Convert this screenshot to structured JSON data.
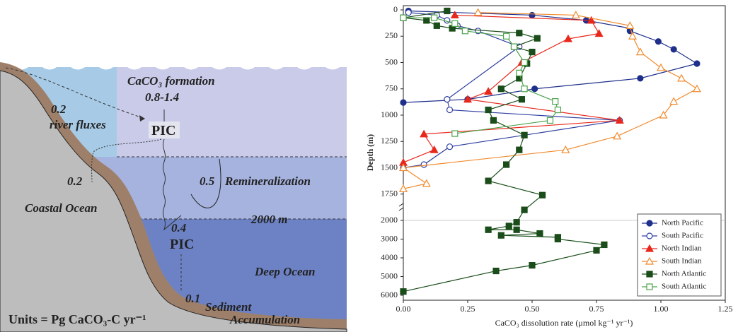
{
  "diagram": {
    "formation_label": "CaCO₃ formation",
    "formation_value": "0.8-1.4",
    "river_value": "0.2",
    "river_label": "river fluxes",
    "pic_upper": "PIC",
    "coastal_value": "0.2",
    "coastal_label": "Coastal Ocean",
    "remin_value": "0.5",
    "remin_label": "Remineralization",
    "depth_label": "2000 m",
    "export_value": "0.4",
    "pic_lower": "PIC",
    "deep_label": "Deep Ocean",
    "sediment_value": "0.1",
    "sediment_label_1": "Sediment",
    "sediment_label_2": "Accumulation",
    "units": "Units = Pg CaCO₃-C yr⁻¹"
  },
  "chart_data": {
    "type": "line",
    "xlabel": "CaCO₃ dissolution rate (μmol kg⁻¹ yr⁻¹)",
    "ylabel": "Depth (m)",
    "xlim": [
      0,
      1.25
    ],
    "xticks": [
      {
        "value": 0,
        "label": "0.00"
      },
      {
        "value": 0.25,
        "label": "0.25"
      },
      {
        "value": 0.5,
        "label": "0.50"
      },
      {
        "value": 0.75,
        "label": "0.75"
      },
      {
        "value": 1,
        "label": "1.00"
      },
      {
        "value": 1.25,
        "label": "1.25"
      }
    ],
    "ylim": [
      0,
      6000
    ],
    "y_inverted": true,
    "y_break": 2000,
    "yticks": [
      0,
      250,
      500,
      750,
      1000,
      1250,
      1500,
      1750,
      2000,
      3000,
      4000,
      5000,
      6000
    ],
    "legend": "lower right",
    "series": [
      {
        "name": "North Pacific",
        "color": "#1f2f8c",
        "marker": "circle",
        "filled": true,
        "x": [
          0.02,
          0.5,
          0.71,
          0.88,
          0.88,
          0.99,
          1.05,
          1.14,
          0.92,
          0.51,
          0.25,
          0.0
        ],
        "y": [
          10,
          50,
          100,
          175,
          200,
          300,
          375,
          510,
          650,
          750,
          850,
          880
        ]
      },
      {
        "name": "South Pacific",
        "color": "#2e3fa0",
        "marker": "circle",
        "filled": false,
        "x": [
          0.02,
          0.13,
          0.17,
          0.21,
          0.29,
          0.45,
          0.17,
          0.18,
          0.84,
          0.18,
          0.08,
          0.0
        ],
        "y": [
          25,
          50,
          100,
          150,
          200,
          350,
          850,
          950,
          1050,
          1300,
          1470,
          1500
        ]
      },
      {
        "name": "North Indian",
        "color": "#e8281c",
        "marker": "triangle",
        "filled": true,
        "x": [
          0.2,
          0.73,
          0.76,
          0.64,
          0.46,
          0.33,
          0.25,
          0.84,
          0.08,
          0.12,
          0.0
        ],
        "y": [
          50,
          100,
          225,
          275,
          500,
          775,
          850,
          1050,
          1180,
          1330,
          1450
        ]
      },
      {
        "name": "South Indian",
        "color": "#f08a2c",
        "marker": "triangle",
        "filled": false,
        "x": [
          0.29,
          0.67,
          0.88,
          0.89,
          0.92,
          1.0,
          1.08,
          1.14,
          1.05,
          1.01,
          0.83,
          0.63,
          0.0,
          0.09,
          0.0
        ],
        "y": [
          25,
          50,
          150,
          250,
          400,
          550,
          650,
          750,
          870,
          1000,
          1200,
          1330,
          1500,
          1650,
          1700
        ]
      },
      {
        "name": "North Atlantic",
        "color": "#1a4d1a",
        "marker": "square",
        "filled": true,
        "x": [
          0.17,
          0.0,
          0.09,
          0.13,
          0.19,
          0.45,
          0.52,
          0.43,
          0.5,
          0.48,
          0.45,
          0.38,
          0.46,
          0.33,
          0.35,
          0.47,
          0.45,
          0.4,
          0.33,
          0.54,
          0.47,
          0.44,
          0.41,
          0.33,
          0.44,
          0.53,
          0.38,
          0.6,
          0.6,
          0.78,
          0.75,
          0.5,
          0.36,
          0.0
        ],
        "y": [
          10,
          75,
          100,
          150,
          175,
          220,
          270,
          350,
          400,
          510,
          650,
          750,
          850,
          950,
          1050,
          1190,
          1330,
          1470,
          1625,
          1760,
          1900,
          2100,
          2300,
          2500,
          2500,
          2700,
          2800,
          2900,
          3000,
          3300,
          3600,
          4400,
          4700,
          5800
        ]
      },
      {
        "name": "South Atlantic",
        "color": "#4ca34c",
        "marker": "square",
        "filled": false,
        "x": [
          0.0,
          0.12,
          0.2,
          0.24,
          0.4,
          0.43,
          0.47,
          0.45,
          0.47,
          0.59,
          0.6,
          0.57,
          0.2
        ],
        "y": [
          75,
          75,
          130,
          200,
          250,
          350,
          500,
          600,
          750,
          870,
          950,
          1050,
          1175
        ]
      }
    ]
  }
}
